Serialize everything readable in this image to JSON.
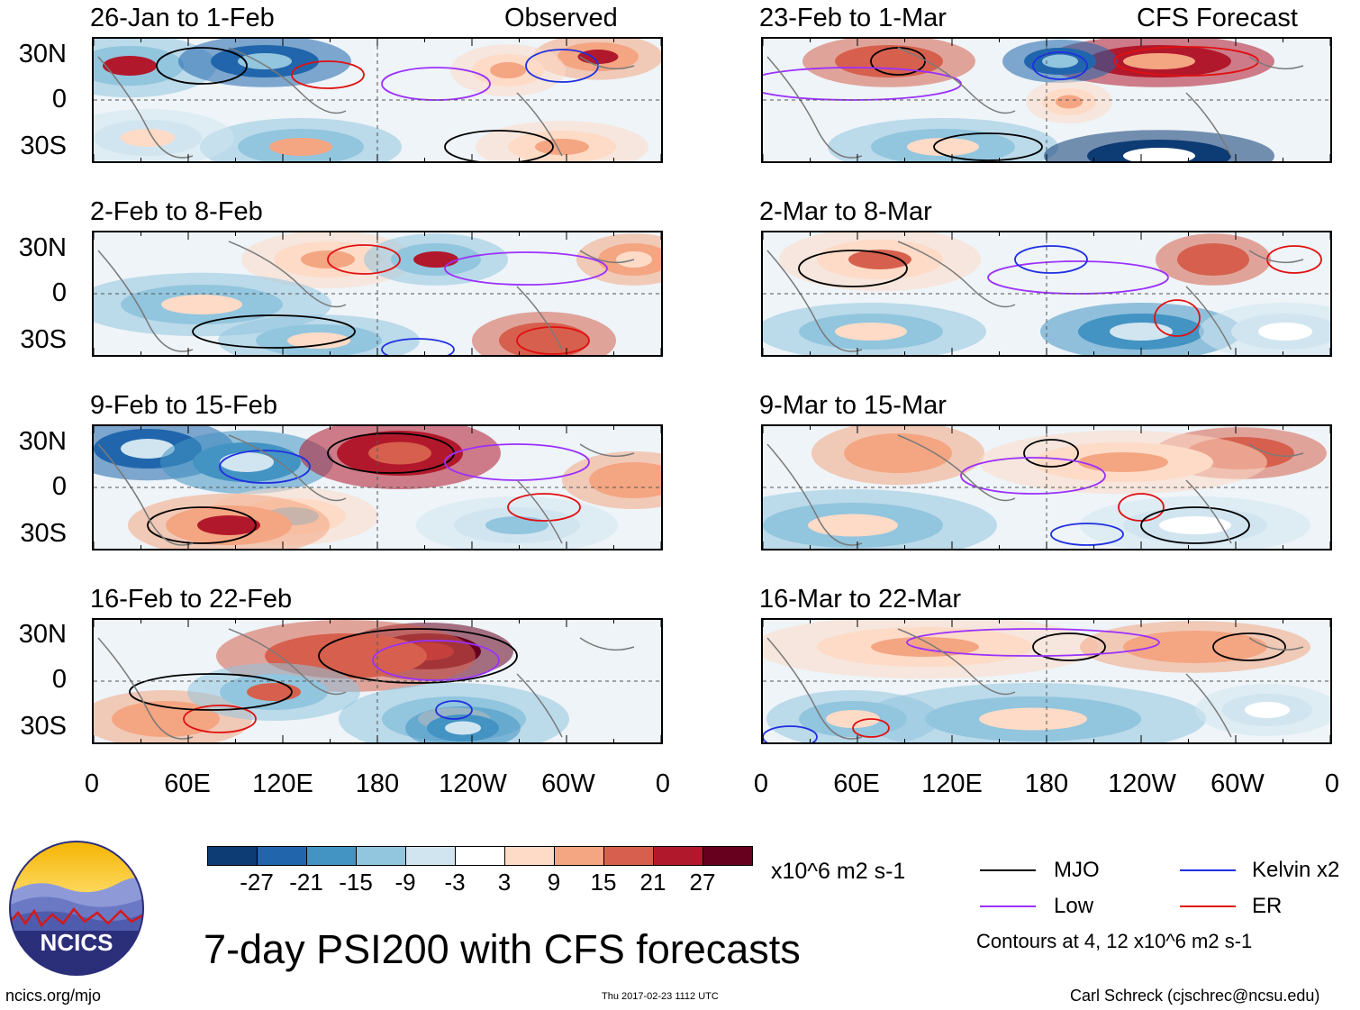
{
  "title": "7-day PSI200 with CFS forecasts",
  "column_labels": {
    "observed": "Observed",
    "forecast": "CFS Forecast"
  },
  "panels": [
    {
      "period": "26-Jan to 1-Feb",
      "pattern": 0
    },
    {
      "period": "2-Feb to 8-Feb",
      "pattern": 1
    },
    {
      "period": "9-Feb to 15-Feb",
      "pattern": 2
    },
    {
      "period": "16-Feb to 22-Feb",
      "pattern": 3
    },
    {
      "period": "23-Feb to 1-Mar",
      "pattern": 4
    },
    {
      "period": "2-Mar to 8-Mar",
      "pattern": 5
    },
    {
      "period": "9-Mar to 15-Mar",
      "pattern": 6
    },
    {
      "period": "16-Mar to 22-Mar",
      "pattern": 7
    }
  ],
  "lat_labels": [
    "30N",
    "0",
    "30S"
  ],
  "lon_labels": [
    "0",
    "60E",
    "120E",
    "180",
    "120W",
    "60W",
    "0"
  ],
  "colorbar": {
    "unit": "x10^6 m2 s-1",
    "labels": [
      "-27",
      "-21",
      "-15",
      "-9",
      "-3",
      "3",
      "9",
      "15",
      "21",
      "27"
    ],
    "colors": [
      "#0d3b73",
      "#2166ac",
      "#4393c3",
      "#92c5de",
      "#d1e5f0",
      "#ffffff",
      "#fddbc7",
      "#f4a582",
      "#d6604d",
      "#b2182b",
      "#67001f"
    ]
  },
  "legend": {
    "items": [
      {
        "name": "MJO",
        "color": "#000000"
      },
      {
        "name": "Kelvin x2",
        "color": "#1f2fe0"
      },
      {
        "name": "Low",
        "color": "#9b30ff"
      },
      {
        "name": "ER",
        "color": "#e01010"
      }
    ],
    "contours_note": "Contours at 4, 12 x10^6 m2 s-1"
  },
  "logo": {
    "text": "NCICS"
  },
  "footer": {
    "url": "ncics.org/mjo",
    "timestamp": "Thu 2017-02-23 1112 UTC",
    "credit": "Carl Schreck (cjschrec@ncsu.edu)"
  }
}
